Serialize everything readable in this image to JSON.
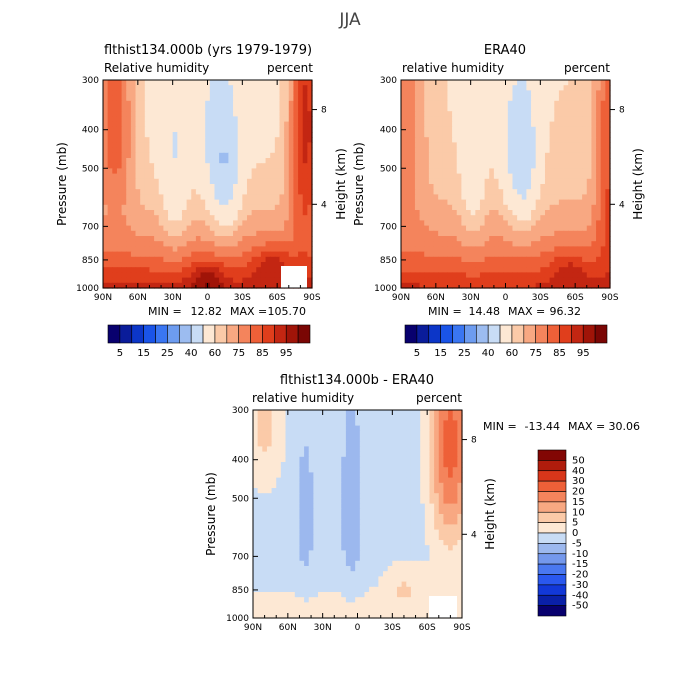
{
  "figure": {
    "title": "JJA"
  },
  "panels": [
    {
      "title": "flthist134.000b (yrs 1979-1979)",
      "left_label": "Relative humidity",
      "right_label": "percent",
      "ylabel": "Pressure (mb)",
      "ylabel_right": "Height (km)",
      "min_label": "MIN =",
      "min_value": "12.82",
      "max_label": "MAX =",
      "max_value": "105.70"
    },
    {
      "title": "ERA40",
      "left_label": "relative humidity",
      "right_label": "percent",
      "ylabel": "Pressure (mb)",
      "ylabel_right": "Height (km)",
      "min_label": "MIN =",
      "min_value": "14.48",
      "max_label": "MAX =",
      "max_value": "96.32"
    },
    {
      "title": "flthist134.000b - ERA40",
      "left_label": "relative humidity",
      "right_label": "percent",
      "ylabel": "Pressure (mb)",
      "ylabel_right": "Height (km)",
      "min_label": "MIN =",
      "min_value": "-13.44",
      "max_label": "MAX =",
      "max_value": "30.06"
    }
  ],
  "chart_data": [
    {
      "type": "heatmap",
      "title": "flthist134.000b (yrs 1979-1979)",
      "subtitle_left": "Relative humidity",
      "subtitle_right": "percent",
      "ylabel": "Pressure (mb)",
      "ylabel_right": "Height (km)",
      "x_ticks": [
        "90N",
        "60N",
        "30N",
        "0",
        "30S",
        "60S",
        "90S"
      ],
      "x_ticks_deg": [
        90,
        60,
        30,
        0,
        -30,
        -60,
        -90
      ],
      "y_ticks": [
        300,
        400,
        500,
        700,
        850,
        1000
      ],
      "y_right_ticks": [
        8,
        4
      ],
      "y_right_ticks_pressure": [
        356,
        616
      ],
      "xlim": [
        90,
        -90
      ],
      "ylim": [
        1000,
        300
      ],
      "min": 12.82,
      "max": 105.7,
      "colorbar_labels": [
        "5",
        "15",
        "25",
        "40",
        "60",
        "75",
        "85",
        "95"
      ],
      "contour_levels": [
        5,
        10,
        15,
        20,
        25,
        30,
        40,
        50,
        60,
        65,
        70,
        75,
        80,
        85,
        90,
        95
      ],
      "colors": [
        "#08006e",
        "#0a1c9a",
        "#0c36c8",
        "#1a54e8",
        "#3a76f2",
        "#6d9cf0",
        "#9cbcf0",
        "#c8dcf5",
        "#fde8d4",
        "#fbcaa8",
        "#f8a882",
        "#f4845c",
        "#ee6038",
        "#e03e1c",
        "#c32612",
        "#a01408",
        "#7a0604"
      ]
    },
    {
      "type": "heatmap",
      "title": "ERA40",
      "subtitle_left": "relative humidity",
      "subtitle_right": "percent",
      "ylabel": "Pressure (mb)",
      "ylabel_right": "Height (km)",
      "x_ticks": [
        "90N",
        "60N",
        "30N",
        "0",
        "30S",
        "60S",
        "90S"
      ],
      "x_ticks_deg": [
        90,
        60,
        30,
        0,
        -30,
        -60,
        -90
      ],
      "y_ticks": [
        300,
        400,
        500,
        700,
        850,
        1000
      ],
      "y_right_ticks": [
        8,
        4
      ],
      "y_right_ticks_pressure": [
        356,
        616
      ],
      "xlim": [
        90,
        -90
      ],
      "ylim": [
        1000,
        300
      ],
      "min": 14.48,
      "max": 96.32,
      "colorbar_labels": [
        "5",
        "15",
        "25",
        "40",
        "60",
        "75",
        "85",
        "95"
      ],
      "contour_levels": [
        5,
        10,
        15,
        20,
        25,
        30,
        40,
        50,
        60,
        65,
        70,
        75,
        80,
        85,
        90,
        95
      ],
      "colors": [
        "#08006e",
        "#0a1c9a",
        "#0c36c8",
        "#1a54e8",
        "#3a76f2",
        "#6d9cf0",
        "#9cbcf0",
        "#c8dcf5",
        "#fde8d4",
        "#fbcaa8",
        "#f8a882",
        "#f4845c",
        "#ee6038",
        "#e03e1c",
        "#c32612",
        "#a01408",
        "#7a0604"
      ]
    },
    {
      "type": "heatmap",
      "title": "flthist134.000b - ERA40",
      "subtitle_left": "relative humidity",
      "subtitle_right": "percent",
      "ylabel": "Pressure (mb)",
      "ylabel_right": "Height (km)",
      "x_ticks": [
        "90N",
        "60N",
        "30N",
        "0",
        "30S",
        "60S",
        "90S"
      ],
      "x_ticks_deg": [
        90,
        60,
        30,
        0,
        -30,
        -60,
        -90
      ],
      "y_ticks": [
        300,
        400,
        500,
        700,
        850,
        1000
      ],
      "y_right_ticks": [
        8,
        4
      ],
      "y_right_ticks_pressure": [
        356,
        616
      ],
      "xlim": [
        90,
        -90
      ],
      "ylim": [
        1000,
        300
      ],
      "min": -13.44,
      "max": 30.06,
      "colorbar_labels": [
        "50",
        "40",
        "30",
        "20",
        "15",
        "10",
        "5",
        "0",
        "-5",
        "-10",
        "-15",
        "-20",
        "-30",
        "-40",
        "-50"
      ],
      "contour_levels": [
        -50,
        -40,
        -30,
        -20,
        -15,
        -10,
        -5,
        0,
        5,
        10,
        15,
        20,
        30,
        40,
        50
      ],
      "colors": [
        "#08006e",
        "#0a20a8",
        "#1238d8",
        "#2a58ee",
        "#4a78f0",
        "#7498ec",
        "#9cb8ee",
        "#c8dcf5",
        "#fde8d4",
        "#fbcaa8",
        "#f8a882",
        "#f4845c",
        "#ee6038",
        "#d8361a",
        "#b01c0c",
        "#820604"
      ]
    }
  ]
}
